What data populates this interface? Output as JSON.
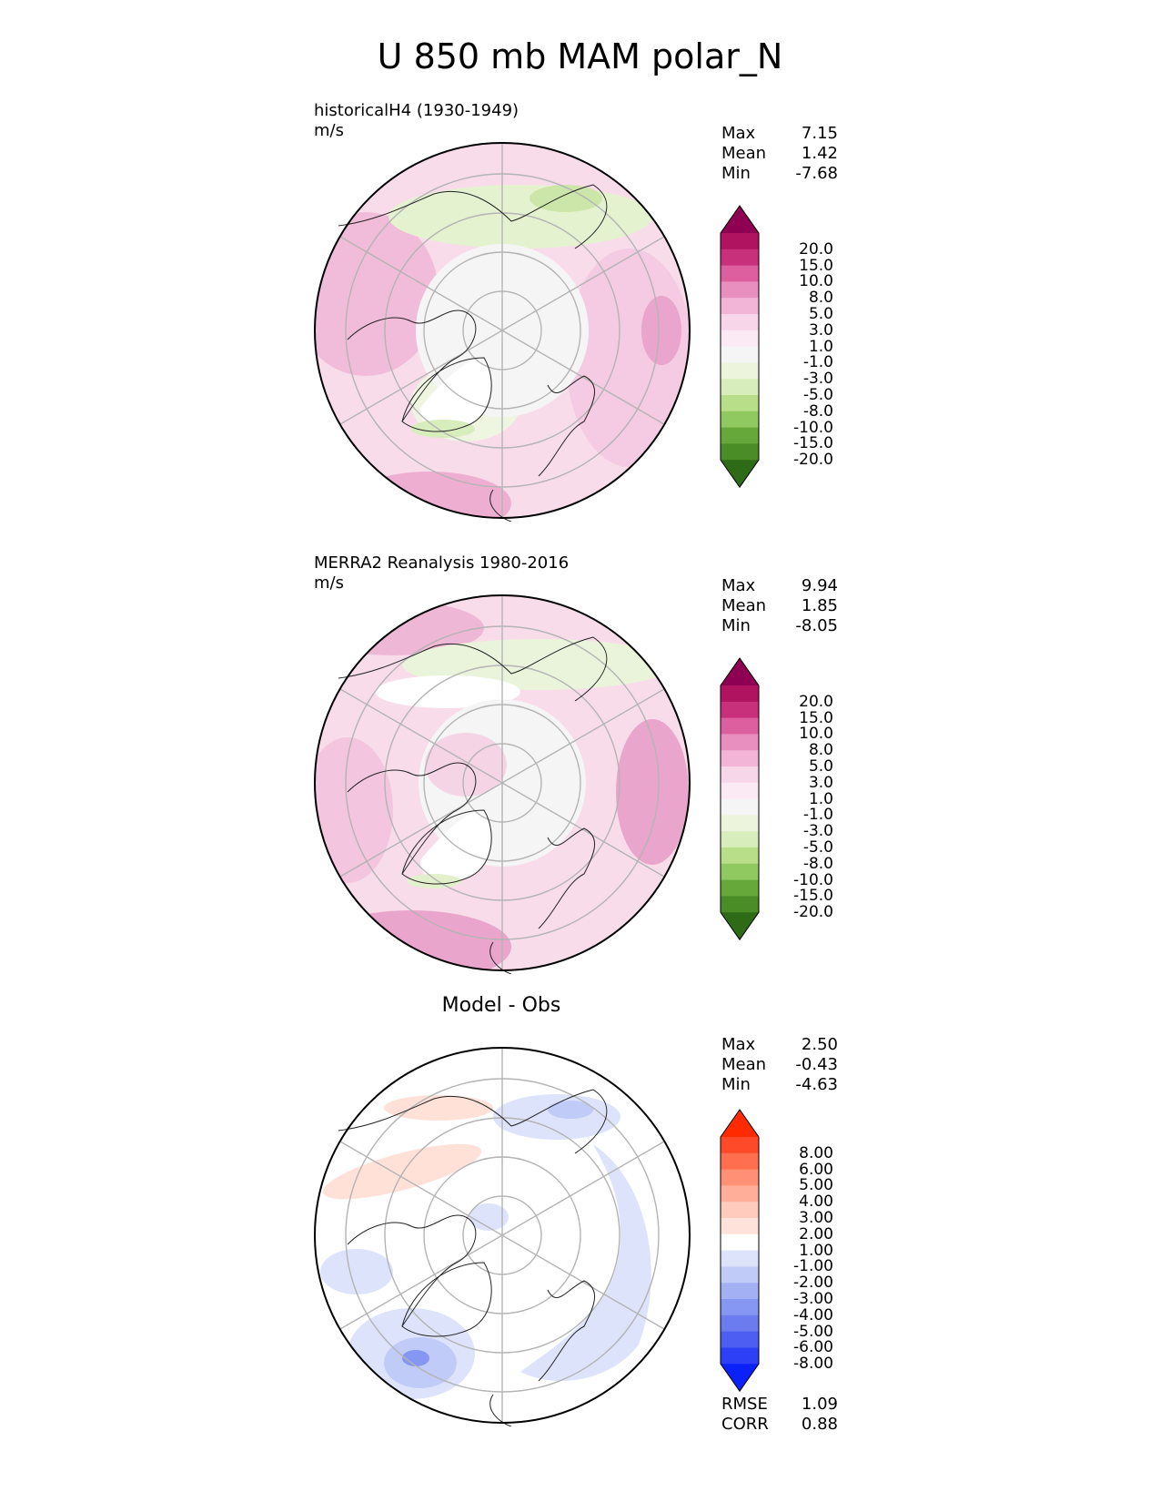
{
  "title": "U 850 mb MAM polar_N",
  "panels": [
    {
      "label": "historicalH4 (1930-1949)",
      "units": "m/s",
      "stats": {
        "max_label": "Max",
        "max": "7.15",
        "mean_label": "Mean",
        "mean": "1.42",
        "min_label": "Min",
        "min": "-7.68"
      },
      "ticks": [
        "20.0",
        "15.0",
        "10.0",
        "8.0",
        "5.0",
        "3.0",
        "1.0",
        "-1.0",
        "-3.0",
        "-5.0",
        "-8.0",
        "-10.0",
        "-15.0",
        "-20.0"
      ],
      "colors": [
        "#8e0152",
        "#b0135f",
        "#c9307c",
        "#de5fa0",
        "#e98fbf",
        "#f2b5d7",
        "#f8d6e9",
        "#fbeaf4",
        "#f5f5f5",
        "#ecf5dc",
        "#d8edbc",
        "#b8de8a",
        "#8fc95f",
        "#66a83a",
        "#4a8c25",
        "#2d6b17"
      ]
    },
    {
      "label": "MERRA2 Reanalysis 1980-2016",
      "units": "m/s",
      "stats": {
        "max_label": "Max",
        "max": "9.94",
        "mean_label": "Mean",
        "mean": "1.85",
        "min_label": "Min",
        "min": "-8.05"
      },
      "ticks": [
        "20.0",
        "15.0",
        "10.0",
        "8.0",
        "5.0",
        "3.0",
        "1.0",
        "-1.0",
        "-3.0",
        "-5.0",
        "-8.0",
        "-10.0",
        "-15.0",
        "-20.0"
      ],
      "colors": [
        "#8e0152",
        "#b0135f",
        "#c9307c",
        "#de5fa0",
        "#e98fbf",
        "#f2b5d7",
        "#f8d6e9",
        "#fbeaf4",
        "#f5f5f5",
        "#ecf5dc",
        "#d8edbc",
        "#b8de8a",
        "#8fc95f",
        "#66a83a",
        "#4a8c25",
        "#2d6b17"
      ]
    },
    {
      "label": "Model - Obs",
      "stats": {
        "max_label": "Max",
        "max": "2.50",
        "mean_label": "Mean",
        "mean": "-0.43",
        "min_label": "Min",
        "min": "-4.63"
      },
      "ticks": [
        "8.00",
        "6.00",
        "5.00",
        "4.00",
        "3.00",
        "2.00",
        "1.00",
        "-1.00",
        "-2.00",
        "-3.00",
        "-4.00",
        "-5.00",
        "-6.00",
        "-8.00"
      ],
      "colors": [
        "#ff2a00",
        "#ff4a2a",
        "#ff6e4f",
        "#ff8f75",
        "#ffae99",
        "#ffcbbd",
        "#ffe3db",
        "#ffffff",
        "#dde3fb",
        "#c1cbf7",
        "#a3b1f4",
        "#8597f2",
        "#6a7cf0",
        "#4c5ff2",
        "#2e40f5",
        "#0a21fa"
      ],
      "rmse_label": "RMSE",
      "rmse": "1.09",
      "corr_label": "CORR",
      "corr": "0.88"
    }
  ]
}
